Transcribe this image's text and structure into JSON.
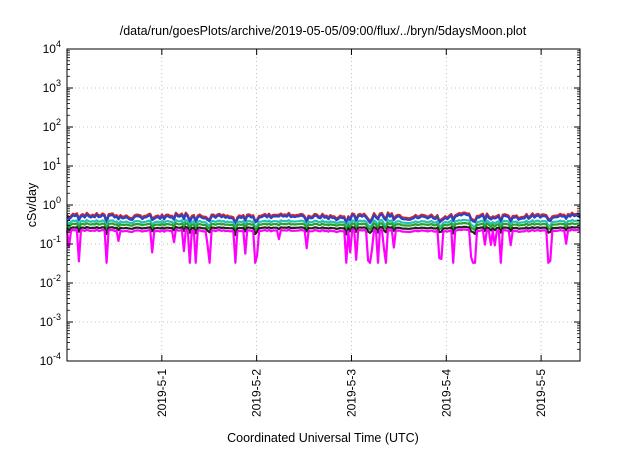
{
  "chart_data": {
    "type": "line",
    "title": "/data/run/goesPlots/archive/2019-05-05/09:00/flux/../bryn/5daysMoon.plot",
    "xlabel": "Coordinated Universal Time (UTC)",
    "ylabel": "cSv/day",
    "yscale": "log",
    "ylim": [
      0.0001,
      10000
    ],
    "xlim": [
      0,
      5.41
    ],
    "grid": true,
    "x_tick_labels": [
      "2019-5-1",
      "2019-5-2",
      "2019-5-3",
      "2019-5-4",
      "2019-5-5"
    ],
    "x_tick_positions": [
      1,
      2,
      3,
      4,
      5
    ],
    "y_ticks": [
      {
        "base": "10",
        "exp": "-4"
      },
      {
        "base": "10",
        "exp": "-3"
      },
      {
        "base": "10",
        "exp": "-2"
      },
      {
        "base": "10",
        "exp": "-1"
      },
      {
        "base": "10",
        "exp": "0"
      },
      {
        "base": "10",
        "exp": "1"
      },
      {
        "base": "10",
        "exp": "2"
      },
      {
        "base": "10",
        "exp": "3"
      },
      {
        "base": "10",
        "exp": "4"
      }
    ],
    "series": [
      {
        "color": "#d62728",
        "level": 0.55,
        "amp": 0.18,
        "dips": 0.0
      },
      {
        "color": "#2a43c8",
        "level": 0.5,
        "amp": 0.18,
        "dips": 0.0
      },
      {
        "color": "#27c2b3",
        "level": 0.38,
        "amp": 0.1,
        "dips": 0.0
      },
      {
        "color": "#2ca02c",
        "level": 0.32,
        "amp": 0.08,
        "dips": 0.0
      },
      {
        "color": "#222222",
        "level": 0.26,
        "amp": 0.06,
        "dips": 0.0
      },
      {
        "color": "#ff00ff",
        "level": 0.22,
        "amp": 0.08,
        "dips": 1.0
      }
    ]
  }
}
